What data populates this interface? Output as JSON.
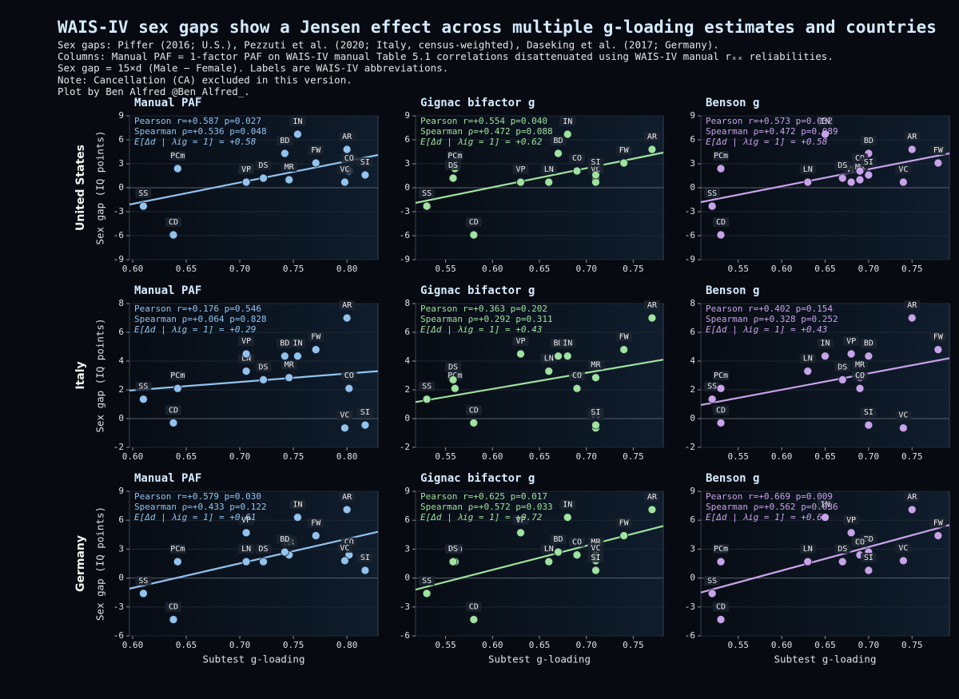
{
  "header": {
    "title": "WAIS-IV sex gaps show a Jensen effect across multiple g-loading estimates and countries",
    "notes": [
      "Sex gaps: Piffer (2016; U.S.), Pezzuti et al. (2020; Italy, census-weighted), Daseking et al. (2017; Germany).",
      "Columns: Manual PAF = 1-factor PAF on WAIS-IV manual Table 5.1 correlations disattenuated using WAIS-IV manual rₓₓ reliabilities.",
      "Sex gap = 15×d (Male − Female). Labels are WAIS-IV abbreviations.",
      "Note: Cancellation (CA) excluded in this version.",
      "Plot by Ben Alfred @Ben_Alfred_."
    ]
  },
  "rows": [
    "United States",
    "Italy",
    "Germany"
  ],
  "chart_data": [
    {
      "type": "scatter",
      "title": "Manual PAF",
      "ylabel": "Sex gap (IQ points)",
      "color": "#92c3ef",
      "categories": [
        "SS",
        "CD",
        "PCm",
        "LN",
        "VP",
        "DS",
        "MR",
        "BD",
        "IN",
        "FW",
        "AR",
        "CO",
        "VC",
        "SI"
      ],
      "x": [
        0.61,
        0.638,
        0.642,
        0.706,
        0.706,
        0.722,
        0.746,
        0.742,
        0.754,
        0.771,
        0.8,
        0.802,
        0.798,
        0.817
      ],
      "values": [
        -2.3,
        -5.9,
        2.4,
        0.7,
        0.7,
        1.2,
        1.0,
        4.3,
        6.7,
        3.1,
        4.8,
        2.1,
        0.7,
        1.6
      ],
      "trend": {
        "x": [
          0.597,
          0.829
        ],
        "values": [
          -2.1,
          4.1
        ]
      },
      "annotations": [
        "Pearson r=+0.587  p=0.027",
        "Spearman ρ=+0.536  p=0.048",
        "E[Δd | λig = 1] = +0.58"
      ],
      "xlim": [
        0.597,
        0.829
      ],
      "xticks": [
        {
          "value": 0.6,
          "label": "0.60"
        },
        {
          "value": 0.65,
          "label": "0.65"
        },
        {
          "value": 0.7,
          "label": "0.70"
        },
        {
          "value": 0.75,
          "label": "0.75"
        },
        {
          "value": 0.8,
          "label": "0.80"
        }
      ],
      "ylim": [
        -9,
        9
      ],
      "yticks": [
        -9,
        -6,
        -3,
        0,
        3,
        6,
        9
      ],
      "grid": true
    },
    {
      "type": "scatter",
      "title": "Gignac bifactor g",
      "color": "#9fe39f",
      "categories": [
        "SS",
        "CD",
        "PCm",
        "LN",
        "VP",
        "DS",
        "MR",
        "BD",
        "IN",
        "FW",
        "AR",
        "CO",
        "VC",
        "SI"
      ],
      "x": [
        0.53,
        0.58,
        0.56,
        0.66,
        0.63,
        0.558,
        0.71,
        0.67,
        0.68,
        0.74,
        0.77,
        0.69,
        0.71,
        0.71
      ],
      "values": [
        -2.3,
        -5.9,
        2.4,
        0.7,
        0.7,
        1.2,
        1.0,
        4.3,
        6.7,
        3.1,
        4.8,
        2.1,
        0.7,
        1.6
      ],
      "trend": {
        "x": [
          0.518,
          0.782
        ],
        "values": [
          -1.9,
          4.4
        ]
      },
      "annotations": [
        "Pearson r=+0.554  p=0.040",
        "Spearman ρ=+0.472  p=0.088",
        "E[Δd | λig = 1] = +0.62"
      ],
      "xlim": [
        0.518,
        0.782
      ],
      "xticks": [
        {
          "value": 0.55,
          "label": "0.55"
        },
        {
          "value": 0.6,
          "label": "0.60"
        },
        {
          "value": 0.65,
          "label": "0.65"
        },
        {
          "value": 0.7,
          "label": "0.70"
        },
        {
          "value": 0.75,
          "label": "0.75"
        }
      ],
      "ylim": [
        -9,
        9
      ],
      "yticks": [
        -9,
        -6,
        -3,
        0,
        3,
        6,
        9
      ],
      "grid": true
    },
    {
      "type": "scatter",
      "title": "Benson g",
      "color": "#c9a3ea",
      "categories": [
        "SS",
        "CD",
        "PCm",
        "LN",
        "VP",
        "DS",
        "MR",
        "BD",
        "IN",
        "FW",
        "AR",
        "CO",
        "VC",
        "SI"
      ],
      "x": [
        0.52,
        0.53,
        0.53,
        0.63,
        0.68,
        0.67,
        0.69,
        0.7,
        0.65,
        0.78,
        0.75,
        0.69,
        0.74,
        0.7
      ],
      "values": [
        -2.3,
        -5.9,
        2.4,
        0.7,
        0.7,
        1.2,
        1.0,
        4.3,
        6.7,
        3.1,
        4.8,
        2.1,
        0.7,
        1.6
      ],
      "trend": {
        "x": [
          0.507,
          0.793
        ],
        "values": [
          -1.8,
          4.3
        ]
      },
      "annotations": [
        "Pearson r=+0.573  p=0.032",
        "Spearman ρ=+0.472  p=0.089",
        "E[Δd | λig = 1] = +0.58"
      ],
      "xlim": [
        0.507,
        0.793
      ],
      "xticks": [
        {
          "value": 0.55,
          "label": "0.55"
        },
        {
          "value": 0.6,
          "label": "0.60"
        },
        {
          "value": 0.65,
          "label": "0.65"
        },
        {
          "value": 0.7,
          "label": "0.70"
        },
        {
          "value": 0.75,
          "label": "0.75"
        }
      ],
      "ylim": [
        -9,
        9
      ],
      "yticks": [
        -9,
        -6,
        -3,
        0,
        3,
        6,
        9
      ],
      "grid": true
    },
    {
      "type": "scatter",
      "title": "Manual PAF",
      "ylabel": "Sex gap (IQ points)",
      "color": "#92c3ef",
      "categories": [
        "SS",
        "CD",
        "PCm",
        "LN",
        "VP",
        "DS",
        "MR",
        "BD",
        "IN",
        "FW",
        "AR",
        "CO",
        "VC",
        "SI"
      ],
      "x": [
        0.61,
        0.638,
        0.642,
        0.706,
        0.706,
        0.722,
        0.746,
        0.742,
        0.754,
        0.771,
        0.8,
        0.802,
        0.798,
        0.817
      ],
      "values": [
        1.35,
        -0.3,
        2.1,
        3.3,
        4.5,
        2.7,
        2.85,
        4.35,
        4.35,
        4.8,
        7.0,
        2.1,
        -0.65,
        -0.45
      ],
      "trend": {
        "x": [
          0.597,
          0.829
        ],
        "values": [
          1.95,
          3.3
        ]
      },
      "annotations": [
        "Pearson r=+0.176  p=0.546",
        "Spearman ρ=+0.064  p=0.828",
        "E[Δd | λig = 1] = +0.29"
      ],
      "xlim": [
        0.597,
        0.829
      ],
      "xticks": [
        {
          "value": 0.6,
          "label": "0.60"
        },
        {
          "value": 0.65,
          "label": "0.65"
        },
        {
          "value": 0.7,
          "label": "0.70"
        },
        {
          "value": 0.75,
          "label": "0.75"
        },
        {
          "value": 0.8,
          "label": "0.80"
        }
      ],
      "ylim": [
        -2,
        8
      ],
      "yticks": [
        -2,
        0,
        2,
        4,
        6,
        8
      ],
      "grid": true
    },
    {
      "type": "scatter",
      "title": "Gignac bifactor g",
      "color": "#9fe39f",
      "categories": [
        "SS",
        "CD",
        "PCm",
        "LN",
        "VP",
        "DS",
        "MR",
        "BD",
        "IN",
        "FW",
        "AR",
        "CO",
        "VC",
        "SI"
      ],
      "x": [
        0.53,
        0.58,
        0.56,
        0.66,
        0.63,
        0.558,
        0.71,
        0.67,
        0.68,
        0.74,
        0.77,
        0.69,
        0.71,
        0.71
      ],
      "values": [
        1.35,
        -0.3,
        2.1,
        3.3,
        4.5,
        2.7,
        2.85,
        4.35,
        4.35,
        4.8,
        7.0,
        2.1,
        -0.65,
        -0.45
      ],
      "trend": {
        "x": [
          0.518,
          0.782
        ],
        "values": [
          1.15,
          4.1
        ]
      },
      "annotations": [
        "Pearson r=+0.363  p=0.202",
        "Spearman ρ=+0.292  p=0.311",
        "E[Δd | λig = 1] = +0.43"
      ],
      "xlim": [
        0.518,
        0.782
      ],
      "xticks": [
        {
          "value": 0.55,
          "label": "0.55"
        },
        {
          "value": 0.6,
          "label": "0.60"
        },
        {
          "value": 0.65,
          "label": "0.65"
        },
        {
          "value": 0.7,
          "label": "0.70"
        },
        {
          "value": 0.75,
          "label": "0.75"
        }
      ],
      "ylim": [
        -2,
        8
      ],
      "yticks": [
        -2,
        0,
        2,
        4,
        6,
        8
      ],
      "grid": true
    },
    {
      "type": "scatter",
      "title": "Benson g",
      "color": "#c9a3ea",
      "categories": [
        "SS",
        "CD",
        "PCm",
        "LN",
        "VP",
        "DS",
        "MR",
        "BD",
        "IN",
        "FW",
        "AR",
        "CO",
        "VC",
        "SI"
      ],
      "x": [
        0.52,
        0.53,
        0.53,
        0.63,
        0.68,
        0.67,
        0.69,
        0.7,
        0.65,
        0.78,
        0.75,
        0.69,
        0.74,
        0.7
      ],
      "values": [
        1.35,
        -0.3,
        2.1,
        3.3,
        4.5,
        2.7,
        2.85,
        4.35,
        4.35,
        4.8,
        7.0,
        2.1,
        -0.65,
        -0.45
      ],
      "trend": {
        "x": [
          0.507,
          0.793
        ],
        "values": [
          0.95,
          4.2
        ]
      },
      "annotations": [
        "Pearson r=+0.402  p=0.154",
        "Spearman ρ=+0.328  p=0.252",
        "E[Δd | λig = 1] = +0.43"
      ],
      "xlim": [
        0.507,
        0.793
      ],
      "xticks": [
        {
          "value": 0.55,
          "label": "0.55"
        },
        {
          "value": 0.6,
          "label": "0.60"
        },
        {
          "value": 0.65,
          "label": "0.65"
        },
        {
          "value": 0.7,
          "label": "0.70"
        },
        {
          "value": 0.75,
          "label": "0.75"
        }
      ],
      "ylim": [
        -2,
        8
      ],
      "yticks": [
        -2,
        0,
        2,
        4,
        6,
        8
      ],
      "grid": true
    },
    {
      "type": "scatter",
      "title": "Manual PAF",
      "ylabel": "Sex gap (IQ points)",
      "xlabel": "Subtest g-loading",
      "color": "#92c3ef",
      "categories": [
        "SS",
        "CD",
        "PCm",
        "LN",
        "VP",
        "DS",
        "MR",
        "BD",
        "IN",
        "FW",
        "AR",
        "CO",
        "VC",
        "SI"
      ],
      "x": [
        0.61,
        0.638,
        0.642,
        0.706,
        0.706,
        0.722,
        0.746,
        0.742,
        0.754,
        0.771,
        0.8,
        0.802,
        0.798,
        0.817
      ],
      "values": [
        -1.6,
        -4.3,
        1.7,
        1.7,
        4.7,
        1.7,
        2.4,
        2.7,
        6.3,
        4.4,
        7.1,
        2.4,
        1.8,
        0.8
      ],
      "trend": {
        "x": [
          0.597,
          0.829
        ],
        "values": [
          -1.1,
          4.8
        ]
      },
      "annotations": [
        "Pearson r=+0.579  p=0.030",
        "Spearman ρ=+0.433  p=0.122",
        "E[Δd | λig = 1] = +0.61"
      ],
      "xlim": [
        0.597,
        0.829
      ],
      "xticks": [
        {
          "value": 0.6,
          "label": "0.60"
        },
        {
          "value": 0.65,
          "label": "0.65"
        },
        {
          "value": 0.7,
          "label": "0.70"
        },
        {
          "value": 0.75,
          "label": "0.75"
        },
        {
          "value": 0.8,
          "label": "0.80"
        }
      ],
      "ylim": [
        -6,
        9
      ],
      "yticks": [
        -6,
        -3,
        0,
        3,
        6,
        9
      ],
      "grid": true
    },
    {
      "type": "scatter",
      "title": "Gignac bifactor g",
      "xlabel": "Subtest g-loading",
      "color": "#9fe39f",
      "categories": [
        "SS",
        "CD",
        "PCm",
        "LN",
        "VP",
        "DS",
        "MR",
        "BD",
        "IN",
        "FW",
        "AR",
        "CO",
        "VC",
        "SI"
      ],
      "x": [
        0.53,
        0.58,
        0.56,
        0.66,
        0.63,
        0.558,
        0.71,
        0.67,
        0.68,
        0.74,
        0.77,
        0.69,
        0.71,
        0.71
      ],
      "values": [
        -1.6,
        -4.3,
        1.7,
        1.7,
        4.7,
        1.7,
        2.4,
        2.7,
        6.3,
        4.4,
        7.1,
        2.4,
        1.8,
        0.8
      ],
      "trend": {
        "x": [
          0.518,
          0.782
        ],
        "values": [
          -1.2,
          5.4
        ]
      },
      "annotations": [
        "Pearson r=+0.625  p=0.017",
        "Spearman ρ=+0.572  p=0.033",
        "E[Δd | λig = 1] = +0.72"
      ],
      "xlim": [
        0.518,
        0.782
      ],
      "xticks": [
        {
          "value": 0.55,
          "label": "0.55"
        },
        {
          "value": 0.6,
          "label": "0.60"
        },
        {
          "value": 0.65,
          "label": "0.65"
        },
        {
          "value": 0.7,
          "label": "0.70"
        },
        {
          "value": 0.75,
          "label": "0.75"
        }
      ],
      "ylim": [
        -6,
        9
      ],
      "yticks": [
        -6,
        -3,
        0,
        3,
        6,
        9
      ],
      "grid": true
    },
    {
      "type": "scatter",
      "title": "Benson g",
      "xlabel": "Subtest g-loading",
      "color": "#c9a3ea",
      "categories": [
        "SS",
        "CD",
        "PCm",
        "LN",
        "VP",
        "DS",
        "MR",
        "BD",
        "IN",
        "FW",
        "AR",
        "CO",
        "VC",
        "SI"
      ],
      "x": [
        0.52,
        0.53,
        0.53,
        0.63,
        0.68,
        0.67,
        0.69,
        0.7,
        0.65,
        0.78,
        0.75,
        0.69,
        0.74,
        0.7
      ],
      "values": [
        -1.6,
        -4.3,
        1.7,
        1.7,
        4.7,
        1.7,
        2.4,
        2.7,
        6.3,
        4.4,
        7.1,
        2.4,
        1.8,
        0.8
      ],
      "trend": {
        "x": [
          0.507,
          0.793
        ],
        "values": [
          -1.5,
          5.5
        ]
      },
      "annotations": [
        "Pearson r=+0.669  p=0.009",
        "Spearman ρ=+0.562  p=0.036",
        "E[Δd | λig = 1] = +0.69"
      ],
      "xlim": [
        0.507,
        0.793
      ],
      "xticks": [
        {
          "value": 0.55,
          "label": "0.55"
        },
        {
          "value": 0.6,
          "label": "0.60"
        },
        {
          "value": 0.65,
          "label": "0.65"
        },
        {
          "value": 0.7,
          "label": "0.70"
        },
        {
          "value": 0.75,
          "label": "0.75"
        }
      ],
      "ylim": [
        -6,
        9
      ],
      "yticks": [
        -6,
        -3,
        0,
        3,
        6,
        9
      ],
      "grid": true
    }
  ]
}
